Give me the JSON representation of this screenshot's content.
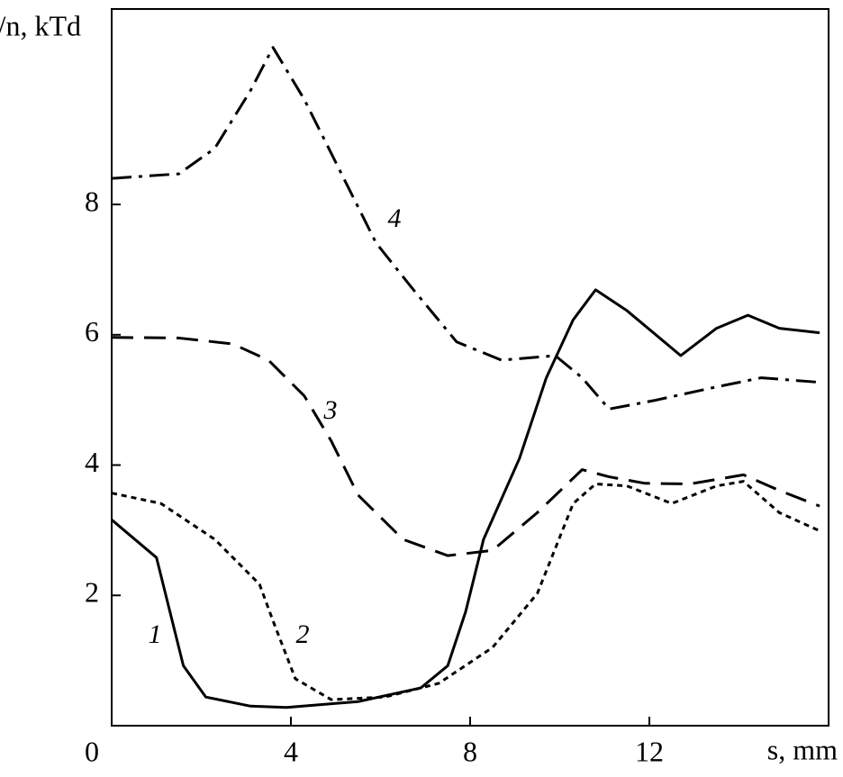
{
  "chart_data": {
    "type": "line",
    "ylabel": "E/n, kTd",
    "xlabel": "s, mm",
    "xlim": [
      0,
      16
    ],
    "ylim": [
      0,
      11
    ],
    "xticks": [
      0,
      4,
      8,
      12
    ],
    "yticks": [
      2,
      4,
      6,
      8
    ],
    "series": [
      {
        "name": "1",
        "color": "#000000",
        "linestyle": "solid",
        "x": [
          0,
          1.0,
          1.3,
          1.6,
          2.1,
          3.1,
          3.9,
          5.5,
          6.9,
          7.5,
          7.9,
          8.3,
          9.1,
          9.7,
          10.3,
          10.8,
          11.5,
          12.7,
          13.5,
          14.2,
          14.9,
          15.8
        ],
        "values": [
          3.16,
          2.58,
          1.75,
          0.92,
          0.44,
          0.3,
          0.28,
          0.37,
          0.58,
          0.92,
          1.75,
          2.86,
          4.1,
          5.34,
          6.23,
          6.69,
          6.37,
          5.68,
          6.1,
          6.3,
          6.1,
          6.03
        ]
      },
      {
        "name": "2",
        "color": "#000000",
        "linestyle": "dotted",
        "x": [
          0,
          1.1,
          2.3,
          3.3,
          3.6,
          4.1,
          4.9,
          6.1,
          7.3,
          8.5,
          9.5,
          10.3,
          10.8,
          11.5,
          12.5,
          13.5,
          14.1,
          14.9,
          15.8
        ],
        "values": [
          3.57,
          3.41,
          2.86,
          2.17,
          1.61,
          0.72,
          0.4,
          0.44,
          0.65,
          1.2,
          2.03,
          3.41,
          3.71,
          3.68,
          3.41,
          3.68,
          3.75,
          3.27,
          2.99
        ]
      },
      {
        "name": "3",
        "color": "#000000",
        "linestyle": "dashed",
        "x": [
          0,
          1.5,
          2.7,
          3.5,
          4.3,
          4.9,
          5.5,
          6.5,
          7.5,
          8.5,
          9.5,
          10.5,
          11.1,
          11.9,
          12.9,
          14.1,
          14.9,
          15.8
        ],
        "values": [
          5.96,
          5.95,
          5.86,
          5.61,
          5.06,
          4.37,
          3.54,
          2.86,
          2.61,
          2.69,
          3.27,
          3.93,
          3.82,
          3.72,
          3.71,
          3.85,
          3.61,
          3.37
        ]
      },
      {
        "name": "4",
        "color": "#000000",
        "linestyle": "dashdot",
        "x": [
          0,
          1.5,
          2.3,
          3.1,
          3.6,
          4.3,
          5.1,
          5.9,
          6.7,
          7.7,
          8.7,
          9.9,
          10.5,
          11.1,
          12.1,
          13.5,
          14.5,
          15.8
        ],
        "values": [
          8.4,
          8.47,
          8.86,
          9.75,
          10.41,
          9.61,
          8.51,
          7.41,
          6.72,
          5.89,
          5.61,
          5.68,
          5.34,
          4.86,
          4.99,
          5.2,
          5.34,
          5.27
        ]
      }
    ]
  }
}
